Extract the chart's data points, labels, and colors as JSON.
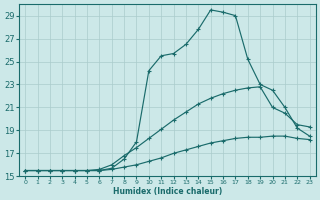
{
  "xlabel": "Humidex (Indice chaleur)",
  "background_color": "#cce8e8",
  "grid_color": "#aacccc",
  "line_color": "#1a6b6b",
  "xlim": [
    -0.5,
    23.5
  ],
  "ylim": [
    15,
    30
  ],
  "xticks": [
    0,
    1,
    2,
    3,
    4,
    5,
    6,
    7,
    8,
    9,
    10,
    11,
    12,
    13,
    14,
    15,
    16,
    17,
    18,
    19,
    20,
    21,
    22,
    23
  ],
  "yticks": [
    15,
    17,
    19,
    21,
    23,
    25,
    27,
    29
  ],
  "series1_x": [
    0,
    1,
    2,
    3,
    4,
    5,
    6,
    7,
    8,
    9,
    10,
    11,
    12,
    13,
    14,
    15,
    16,
    17,
    18,
    19,
    20,
    21,
    22,
    23
  ],
  "series1_y": [
    15.5,
    15.5,
    15.5,
    15.5,
    15.5,
    15.5,
    15.5,
    15.6,
    15.8,
    16.0,
    16.3,
    16.6,
    17.0,
    17.3,
    17.6,
    17.9,
    18.1,
    18.3,
    18.4,
    18.4,
    18.5,
    18.5,
    18.3,
    18.2
  ],
  "series2_x": [
    0,
    1,
    2,
    3,
    4,
    5,
    6,
    7,
    8,
    9,
    10,
    11,
    12,
    13,
    14,
    15,
    16,
    17,
    18,
    19,
    20,
    21,
    22,
    23
  ],
  "series2_y": [
    15.5,
    15.5,
    15.5,
    15.5,
    15.5,
    15.5,
    15.6,
    16.0,
    16.8,
    17.5,
    18.3,
    19.1,
    19.9,
    20.6,
    21.3,
    21.8,
    22.2,
    22.5,
    22.7,
    22.8,
    21.0,
    20.5,
    19.5,
    19.3
  ],
  "series3_x": [
    0,
    1,
    2,
    3,
    4,
    5,
    6,
    7,
    8,
    9,
    10,
    11,
    12,
    13,
    14,
    15,
    16,
    17,
    18,
    19,
    20,
    21,
    22,
    23
  ],
  "series3_y": [
    15.5,
    15.5,
    15.5,
    15.5,
    15.5,
    15.5,
    15.5,
    15.7,
    16.5,
    18.0,
    24.2,
    25.5,
    25.7,
    26.5,
    27.8,
    29.5,
    29.3,
    29.0,
    25.2,
    23.0,
    22.5,
    21.0,
    19.2,
    18.5
  ]
}
